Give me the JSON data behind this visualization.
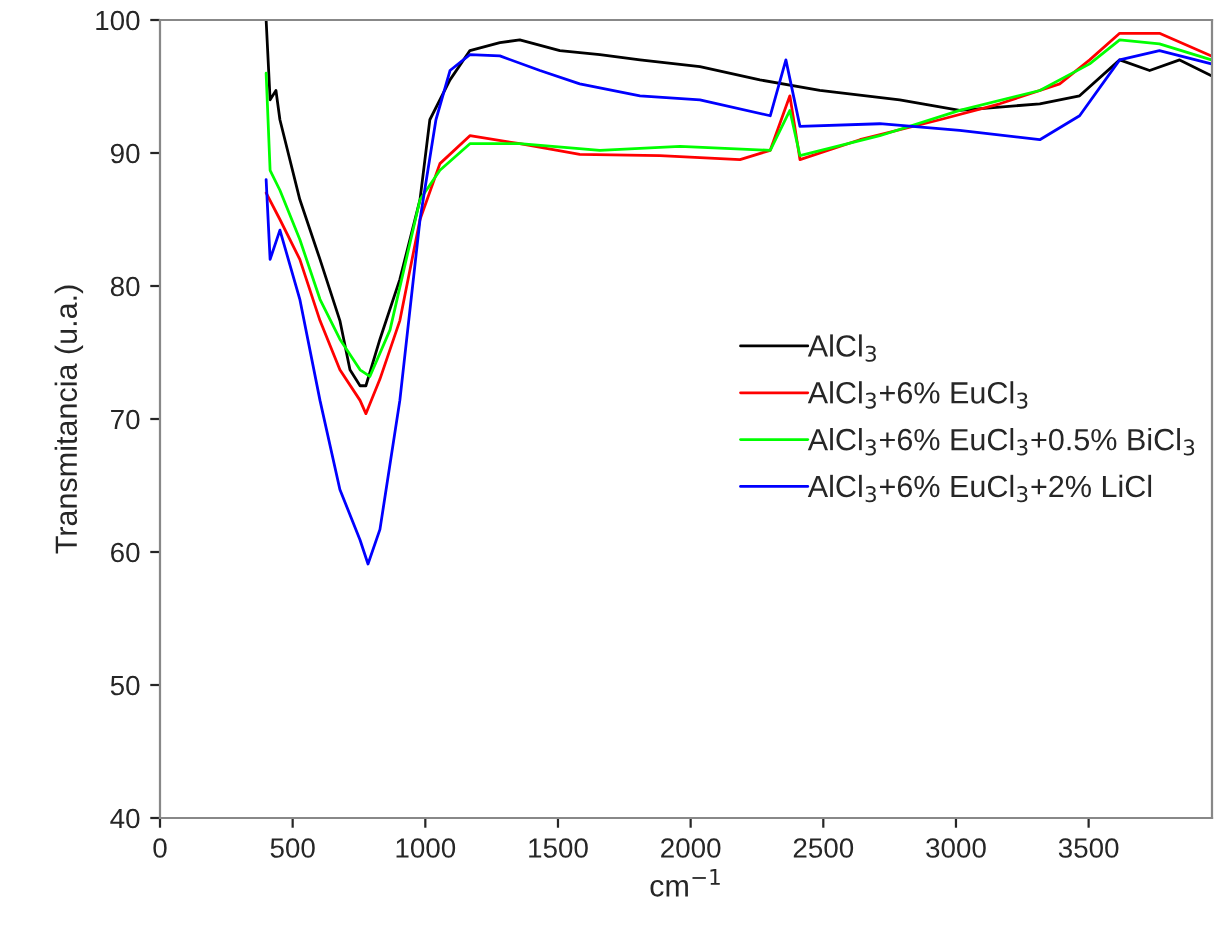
{
  "chart_data": {
    "type": "line",
    "xlabel": "cm$^{−1}$",
    "ylabel": "Transmitancia (u.a.)",
    "xlim": [
      0,
      3965
    ],
    "ylim": [
      40,
      100
    ],
    "xticks": [
      0,
      500,
      1000,
      1500,
      2000,
      2500,
      3000,
      3500
    ],
    "yticks": [
      40,
      50,
      60,
      70,
      80,
      90,
      100
    ],
    "grid": false,
    "legend": "right",
    "marker": "none",
    "line_style": "solid",
    "series": [
      {
        "name": "AlCl$_{3}$",
        "color": "#000000",
        "x": [
          400,
          415,
          437,
          452,
          527,
          603,
          678,
          716,
          754,
          776,
          829,
          904,
          980,
          1017,
          1093,
          1168,
          1281,
          1356,
          1507,
          1658,
          1809,
          2035,
          2261,
          2487,
          2788,
          3014,
          3316,
          3466,
          3617,
          3730,
          3843,
          3963
        ],
        "values": [
          100,
          94,
          94.7,
          92.5,
          86.5,
          82,
          77.4,
          73.7,
          72.5,
          72.5,
          76,
          80.5,
          86.5,
          92.5,
          95.5,
          97.7,
          98.3,
          98.5,
          97.7,
          97.4,
          97,
          96.5,
          95.5,
          94.7,
          94,
          93.2,
          93.7,
          94.3,
          97,
          96.2,
          97,
          95.8
        ]
      },
      {
        "name": "AlCl$_{3}$+6% EuCl$_{3}$",
        "color": "#ff0000",
        "x": [
          400,
          452,
          527,
          603,
          678,
          754,
          776,
          829,
          904,
          980,
          1055,
          1168,
          1356,
          1582,
          1884,
          2186,
          2300,
          2374,
          2412,
          2638,
          2939,
          3165,
          3391,
          3504,
          3617,
          3767,
          3963
        ],
        "values": [
          87,
          85,
          82,
          77.4,
          73.7,
          71.4,
          70.4,
          73,
          77.4,
          85,
          89.2,
          91.3,
          90.7,
          89.9,
          89.8,
          89.5,
          90.2,
          94.3,
          89.5,
          91,
          92.5,
          93.7,
          95.2,
          97,
          99,
          99,
          97.3
        ]
      },
      {
        "name": "AlCl$_{3}$+6% EuCl$_{3}$+0.5% BiCl$_{3}$",
        "color": "#00ff00",
        "x": [
          400,
          415,
          452,
          527,
          603,
          678,
          754,
          791,
          867,
          980,
          1055,
          1168,
          1356,
          1658,
          1960,
          2300,
          2374,
          2412,
          2713,
          3014,
          3316,
          3504,
          3617,
          3767,
          3963
        ],
        "values": [
          96,
          88.7,
          87.2,
          83.5,
          79,
          76,
          73.7,
          73.2,
          76.7,
          86.5,
          88.7,
          90.7,
          90.7,
          90.2,
          90.5,
          90.2,
          93.2,
          89.8,
          91.3,
          93.2,
          94.7,
          96.7,
          98.5,
          98.2,
          97
        ]
      },
      {
        "name": "AlCl$_{3}$+6% EuCl$_{3}$+2% LiCl",
        "color": "#0000ff",
        "x": [
          400,
          415,
          452,
          527,
          603,
          678,
          754,
          784,
          829,
          904,
          980,
          1040,
          1093,
          1168,
          1281,
          1432,
          1582,
          1809,
          2035,
          2300,
          2359,
          2412,
          2713,
          3014,
          3316,
          3466,
          3617,
          3767,
          3963
        ],
        "values": [
          88,
          82,
          84.2,
          79,
          71.4,
          64.7,
          60.9,
          59.1,
          61.7,
          71.4,
          85,
          92.5,
          96.2,
          97.4,
          97.3,
          96.2,
          95.2,
          94.3,
          94,
          92.8,
          97,
          92,
          92.2,
          91.7,
          91,
          92.8,
          97,
          97.7,
          96.7
        ]
      }
    ]
  }
}
